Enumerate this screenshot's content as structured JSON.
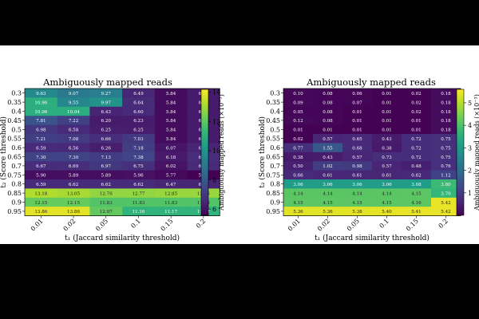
{
  "chart_data": [
    {
      "type": "heatmap",
      "title": "Ambiguously mapped reads",
      "xlabel": "t₁ (Jaccard similarity threshold)",
      "ylabel": "t₂ (Score threshold)",
      "x_categories": [
        "0.01",
        "0.02",
        "0.05",
        "0.1",
        "0.15",
        "0.2"
      ],
      "y_categories": [
        "0.3",
        "0.35",
        "0.4",
        "0.45",
        "0.5",
        "0.55",
        "0.6",
        "0.65",
        "0.7",
        "0.75",
        "0.8",
        "0.85",
        "0.9",
        "0.95"
      ],
      "values": [
        [
          9.63,
          9.07,
          9.27,
          6.49,
          5.84,
          6.21
        ],
        [
          10.96,
          9.55,
          9.97,
          6.64,
          5.84,
          6.21
        ],
        [
          10.96,
          10.94,
          6.43,
          6.6,
          5.84,
          6.21
        ],
        [
          7.81,
          7.22,
          6.2,
          6.23,
          5.84,
          6.21
        ],
        [
          6.98,
          6.58,
          6.25,
          6.25,
          5.84,
          6.21
        ],
        [
          7.21,
          7.08,
          6.66,
          7.03,
          5.84,
          6.21
        ],
        [
          6.59,
          6.56,
          6.26,
          7.18,
          6.07,
          6.46
        ],
        [
          7.3,
          7.3,
          7.13,
          7.38,
          6.18,
          6.67
        ],
        [
          6.67,
          6.69,
          6.97,
          6.75,
          6.02,
          6.61
        ],
        [
          5.9,
          5.89,
          5.89,
          5.96,
          5.77,
          5.57
        ],
        [
          6.59,
          6.62,
          6.62,
          6.62,
          6.47,
          6.47
        ],
        [
          13.18,
          13.05,
          12.76,
          12.77,
          12.85,
          12.85
        ],
        [
          12.15,
          12.15,
          11.83,
          11.83,
          11.83,
          11.83
        ],
        [
          13.86,
          13.86,
          12.07,
          11.16,
          11.17,
          11.17
        ]
      ],
      "vmin": 5.57,
      "vmax": 14.2,
      "colorbar": {
        "label": "Ambiguously mapped reads (×10⁻³)",
        "ticks": [
          6,
          8,
          10,
          12,
          14
        ]
      },
      "colormap": [
        "#440154",
        "#482878",
        "#3e4989",
        "#31688e",
        "#26828e",
        "#1f9e89",
        "#35b779",
        "#6ece58",
        "#b5de2b",
        "#fde725"
      ]
    },
    {
      "type": "heatmap",
      "title": "Ambiguously mapped reads",
      "xlabel": "t₁ (Jaccard similarity threshold)",
      "ylabel": "t₂ (Score threshold)",
      "x_categories": [
        "0.01",
        "0.02",
        "0.05",
        "0.1",
        "0.15",
        "0.2"
      ],
      "y_categories": [
        "0.3",
        "0.35",
        "0.4",
        "0.45",
        "0.5",
        "0.55",
        "0.6",
        "0.65",
        "0.7",
        "0.75",
        "0.8",
        "0.85",
        "0.9",
        "0.95"
      ],
      "values": [
        [
          0.1,
          0.08,
          0.06,
          0.01,
          0.02,
          0.18
        ],
        [
          0.09,
          0.08,
          0.07,
          0.01,
          0.02,
          0.18
        ],
        [
          0.05,
          0.08,
          0.01,
          0.01,
          0.02,
          0.18
        ],
        [
          0.12,
          0.08,
          0.01,
          0.01,
          0.01,
          0.18
        ],
        [
          0.01,
          0.01,
          0.01,
          0.01,
          0.01,
          0.18
        ],
        [
          0.02,
          0.57,
          0.65,
          0.43,
          0.72,
          0.75
        ],
        [
          0.77,
          1.55,
          0.68,
          0.38,
          0.72,
          0.75
        ],
        [
          0.38,
          0.43,
          0.57,
          0.73,
          0.72,
          0.75
        ],
        [
          0.5,
          1.02,
          0.98,
          0.57,
          0.48,
          0.76
        ],
        [
          0.66,
          0.61,
          0.61,
          0.61,
          0.62,
          1.12
        ],
        [
          3.06,
          3.06,
          3.06,
          3.06,
          3.08,
          3.8
        ],
        [
          4.14,
          4.14,
          4.14,
          4.14,
          4.15,
          3.7
        ],
        [
          4.15,
          4.15,
          4.15,
          4.15,
          4.16,
          5.42
        ],
        [
          5.36,
          5.36,
          5.38,
          5.4,
          5.41,
          5.42
        ]
      ],
      "vmin": 0,
      "vmax": 5.6,
      "colorbar": {
        "label": "Ambiguously mapped reads (×10⁻³)",
        "ticks": [
          1,
          2,
          3,
          4,
          5
        ]
      },
      "colormap": [
        "#440154",
        "#482878",
        "#3e4989",
        "#31688e",
        "#26828e",
        "#1f9e89",
        "#35b779",
        "#6ece58",
        "#b5de2b",
        "#fde725"
      ]
    }
  ]
}
